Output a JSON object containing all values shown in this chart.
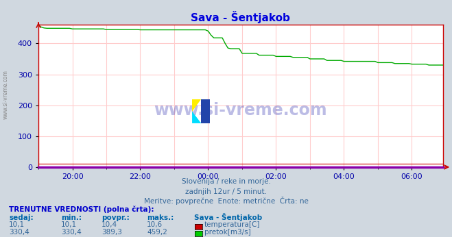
{
  "title": "Sava - Šentjakob",
  "bg_color": "#d0d8e0",
  "plot_bg_color": "#ffffff",
  "grid_color_major": "#ffcccc",
  "grid_color_minor": "#ffe8e8",
  "axis_color": "#0000cc",
  "border_color_top": "#cc0000",
  "border_color_right": "#cc0000",
  "border_color_left": "#cc0000",
  "border_color_bottom": "#8800aa",
  "title_color": "#0000dd",
  "tick_color": "#0000aa",
  "n_points": 144,
  "subtitle1": "Slovenija / reke in morje.",
  "subtitle2": "zadnjih 12ur / 5 minut.",
  "subtitle3": "Meritve: povprečne  Enote: metrične  Črta: ne",
  "table_header": "TRENUTNE VREDNOSTI (polna črta):",
  "col_headers": [
    "sedaj:",
    "min.:",
    "povpr.:",
    "maks.:",
    "Sava - Šentjakob"
  ],
  "row1": [
    "10,1",
    "10,1",
    "10,4",
    "10,6"
  ],
  "row2": [
    "330,4",
    "330,4",
    "389,3",
    "459,2"
  ],
  "label1": "temperatura[C]",
  "label2": "pretok[m3/s]",
  "color1": "#cc0000",
  "color2": "#00cc00",
  "line_color": "#00aa00",
  "temp_line_color": "#cc0000",
  "watermark_text": "www.si-vreme.com",
  "watermark_color": "#2222aa",
  "side_text": "www.si-vreme.com",
  "ylim_max": 460,
  "ytick_step": 100,
  "shown_x_labels": [
    "20:00",
    "22:00",
    "00:00",
    "02:00",
    "04:00",
    "06:00"
  ],
  "shown_x_positions": [
    12,
    36,
    60,
    84,
    108,
    132
  ],
  "subtitle_color": "#336699",
  "col_header_color": "#0066aa",
  "data_color": "#336699"
}
